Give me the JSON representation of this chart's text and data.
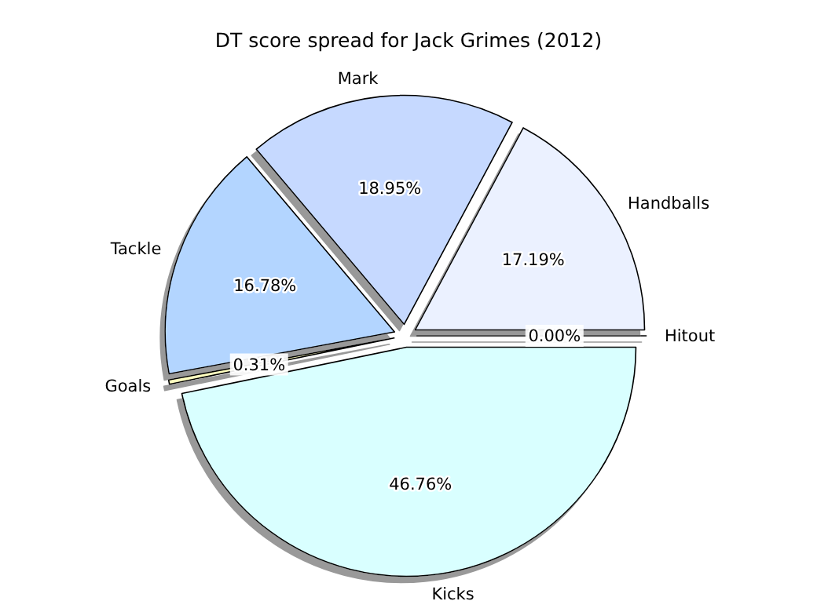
{
  "chart_data": {
    "type": "pie",
    "title": "DT score spread for Jack Grimes (2012)",
    "categories": [
      "Handballs",
      "Mark",
      "Tackle",
      "Goals",
      "Kicks",
      "Hitout"
    ],
    "values": [
      17.19,
      18.95,
      16.78,
      0.31,
      46.76,
      0
    ],
    "value_labels": [
      "17.19%",
      "18.95%",
      "16.78%",
      "0.31%",
      "46.76%",
      "0.00%"
    ],
    "colors": [
      "#ebf1ff",
      "#c6d9ff",
      "#b3d5ff",
      "#ffffc0",
      "#d9ffff",
      "#ffffff"
    ]
  }
}
